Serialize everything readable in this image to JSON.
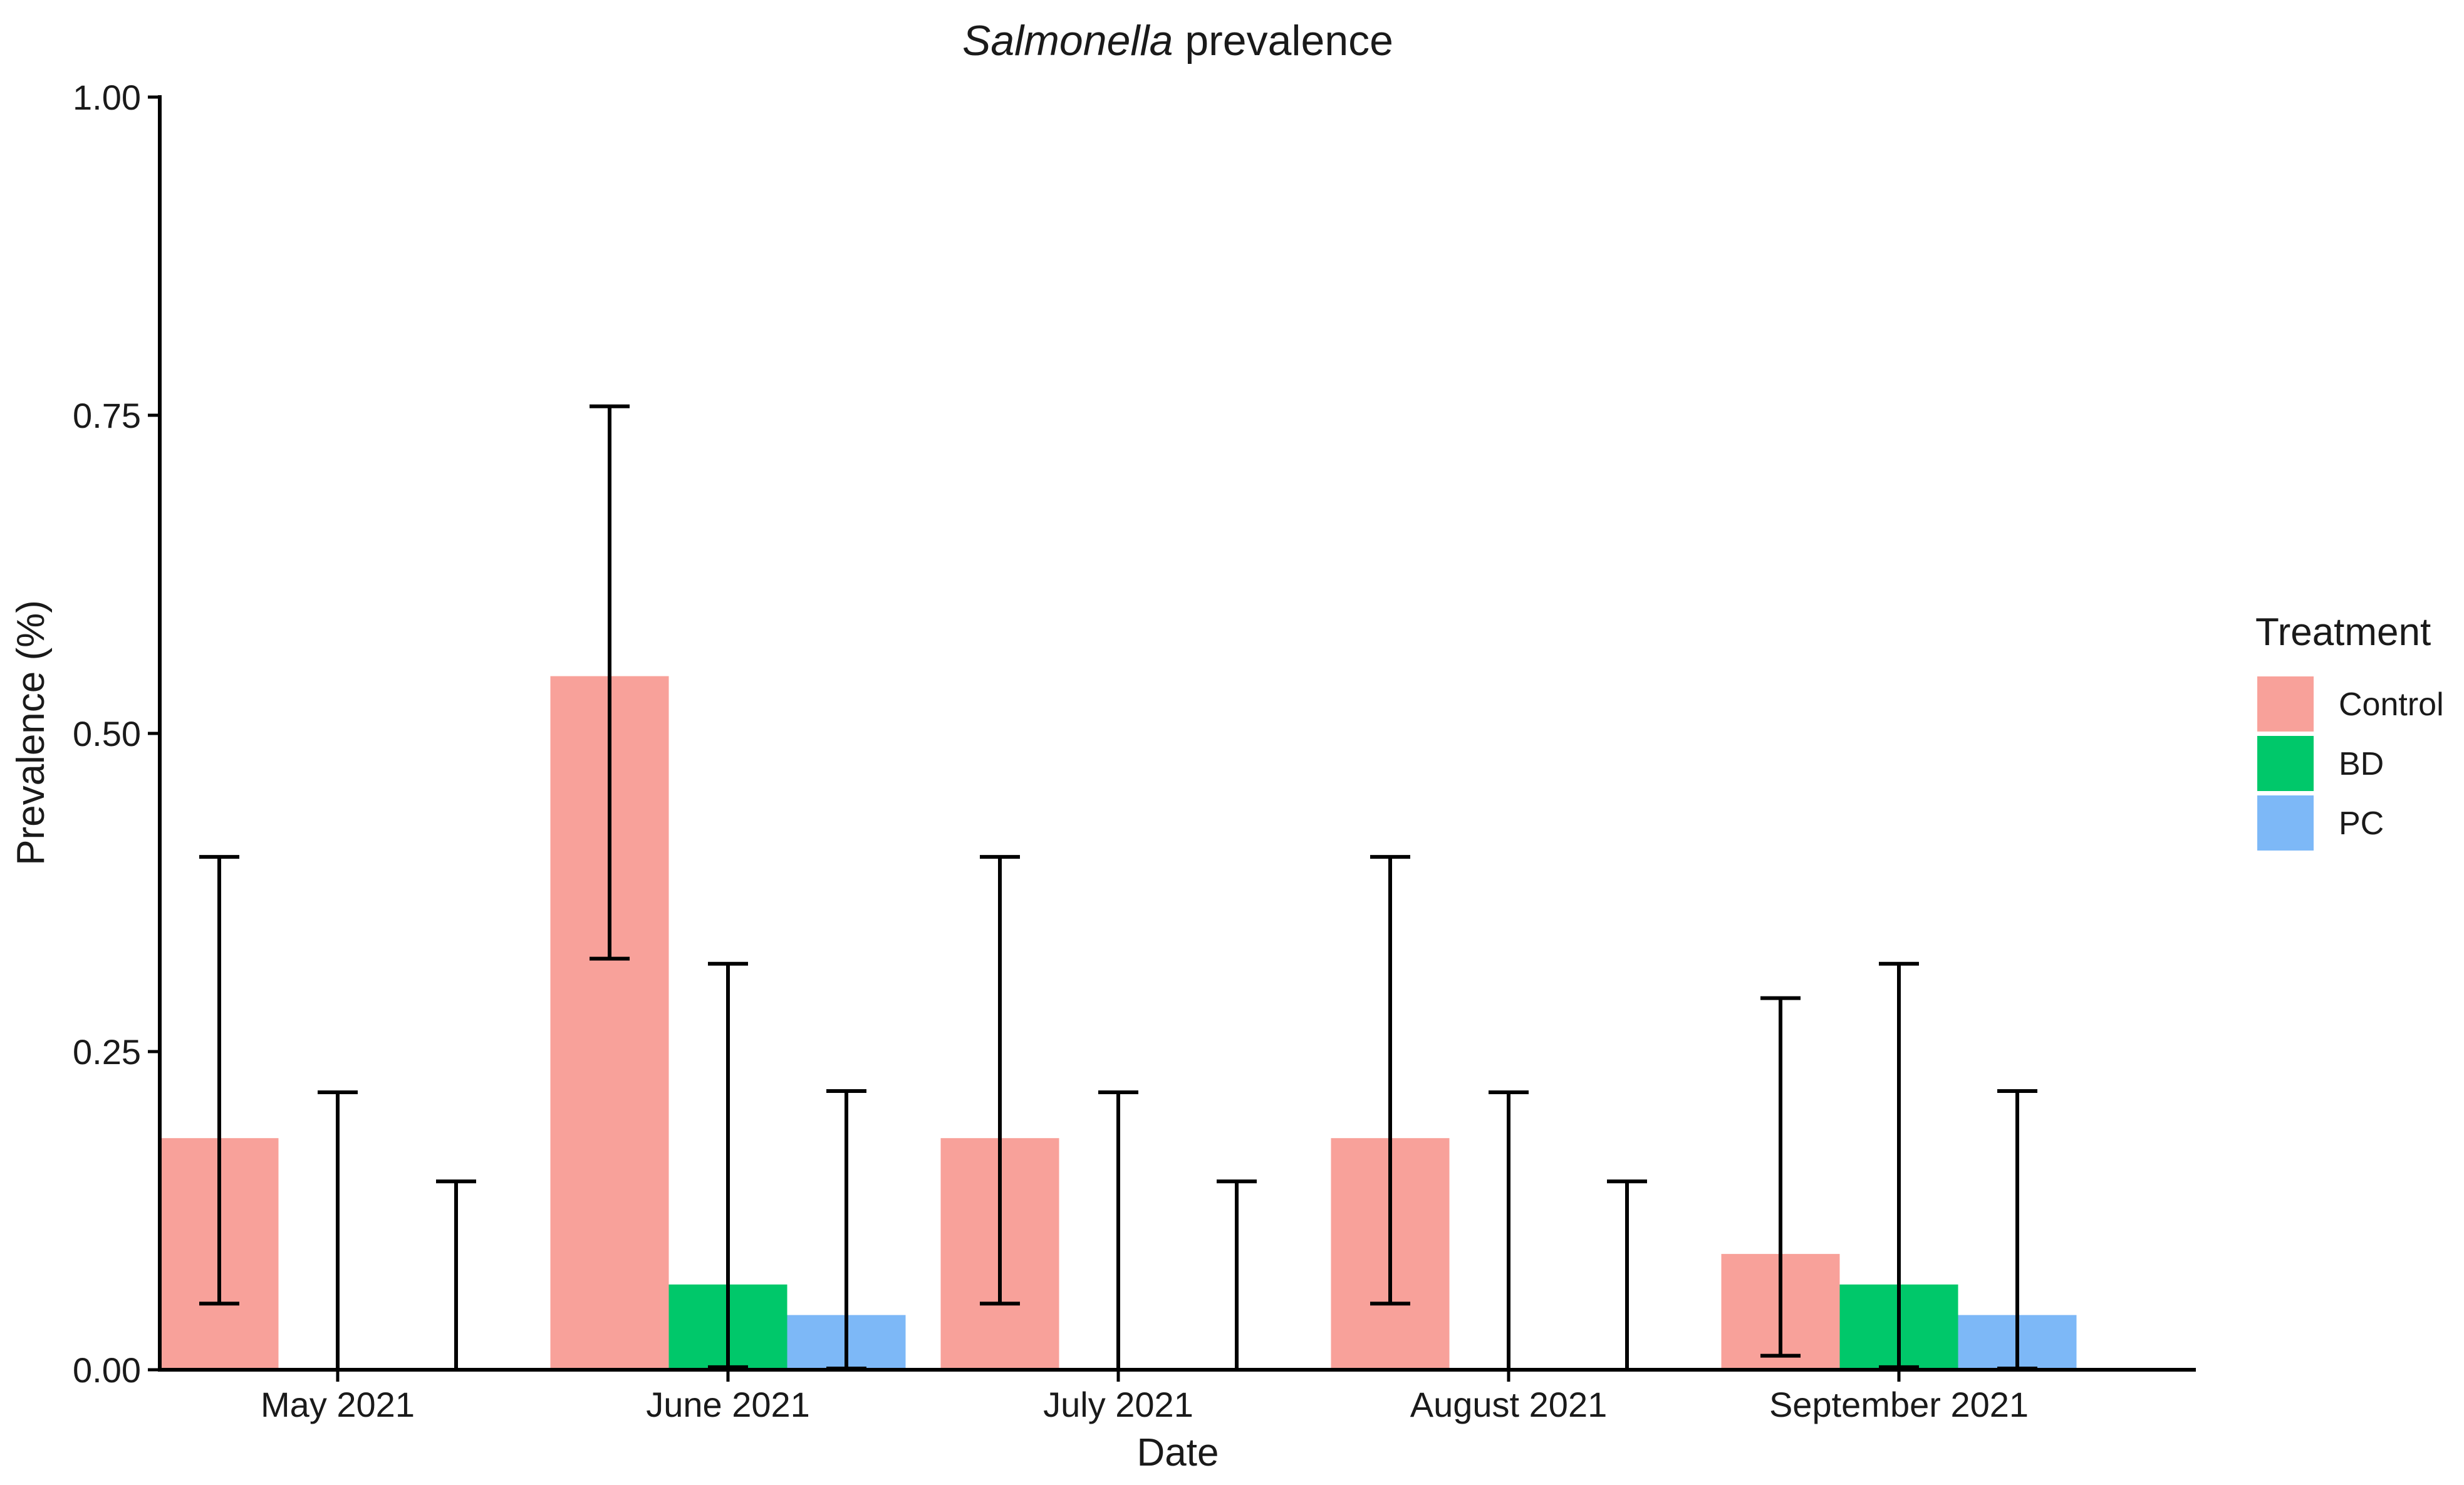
{
  "chart_data": {
    "type": "bar",
    "title": "Salmonella prevalence",
    "title_italic_part": "Salmonella",
    "title_rest": " prevalence",
    "xlabel": "Date",
    "ylabel": "Prevalence (%)",
    "ylim": [
      0,
      1
    ],
    "yticks": [
      0,
      0.25,
      0.5,
      0.75,
      1
    ],
    "ytick_labels": [
      "0.00",
      "0.25",
      "0.50",
      "0.75",
      "1.00"
    ],
    "categories": [
      "May 2021",
      "June 2021",
      "July 2021",
      "August 2021",
      "September 2021"
    ],
    "legend": {
      "title": "Treatment",
      "position": "right"
    },
    "grid": false,
    "series": [
      {
        "name": "Control",
        "color": "#F8A19A",
        "values": [
          0.182,
          0.545,
          0.182,
          0.182,
          0.091
        ],
        "ci_low": [
          0.052,
          0.323,
          0.052,
          0.052,
          0.011
        ],
        "ci_high": [
          0.403,
          0.757,
          0.403,
          0.403,
          0.292
        ]
      },
      {
        "name": "BD",
        "color": "#00C86A",
        "values": [
          0,
          0.067,
          0,
          0,
          0.067
        ],
        "ci_low": [
          0,
          0.002,
          0,
          0,
          0.002
        ],
        "ci_high": [
          0.218,
          0.319,
          0.218,
          0.218,
          0.319
        ]
      },
      {
        "name": "PC",
        "color": "#7DB8F7",
        "values": [
          0,
          0.043,
          0,
          0,
          0.043
        ],
        "ci_low": [
          0,
          0.001,
          0,
          0,
          0.001
        ],
        "ci_high": [
          0.148,
          0.219,
          0.148,
          0.148,
          0.219
        ]
      }
    ]
  }
}
